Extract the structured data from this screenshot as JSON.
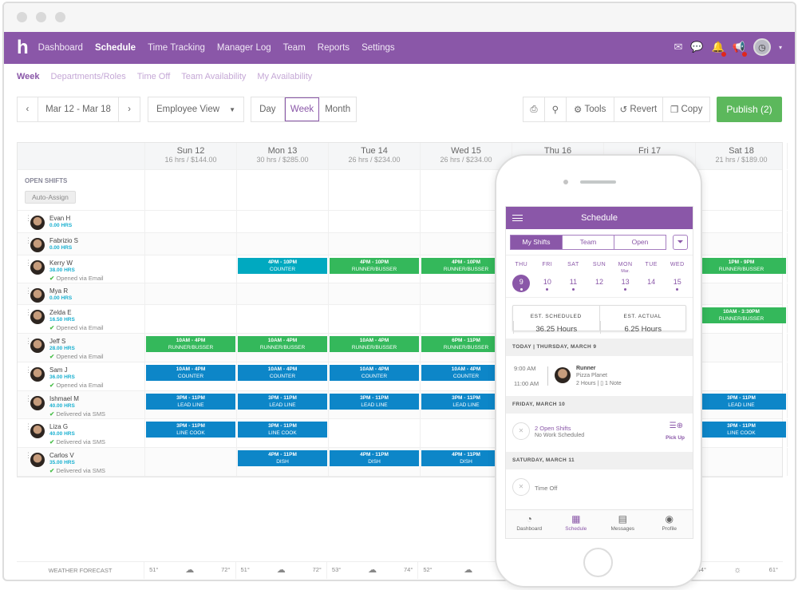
{
  "nav": {
    "logo": "h",
    "items": [
      "Dashboard",
      "Schedule",
      "Time Tracking",
      "Manager Log",
      "Team",
      "Reports",
      "Settings"
    ],
    "active": "Schedule"
  },
  "subnav": {
    "items": [
      "Week",
      "Departments/Roles",
      "Time Off",
      "Team Availability",
      "My Availability"
    ],
    "active": "Week"
  },
  "toolbar": {
    "prev": "‹",
    "date_range": "Mar 12 - Mar 18",
    "next": "›",
    "view_select": "Employee View",
    "views": [
      "Day",
      "Week",
      "Month"
    ],
    "active_view": "Week",
    "print": "⎙",
    "search": "⚲",
    "tools": "Tools",
    "revert": "Revert",
    "copy": "Copy",
    "publish": "Publish (2)"
  },
  "colors": {
    "brand": "#8a57a8",
    "green": "#34b85b",
    "blue": "#0d86c8",
    "teal": "#00a9c0",
    "publish": "#5cb85c"
  },
  "days": [
    {
      "name": "Sun 12",
      "summary": "16 hrs / $144.00"
    },
    {
      "name": "Mon 13",
      "summary": "30 hrs / $285.00"
    },
    {
      "name": "Tue 14",
      "summary": "26 hrs / $234.00"
    },
    {
      "name": "Wed 15",
      "summary": "26 hrs / $234.00"
    },
    {
      "name": "Thu 16",
      "summary": ""
    },
    {
      "name": "Fri 17",
      "summary": ""
    },
    {
      "name": "Sat 18",
      "summary": "21 hrs / $189.00"
    }
  ],
  "open_shifts": {
    "label": "OPEN SHIFTS",
    "auto_assign": "Auto-Assign"
  },
  "employees": [
    {
      "name": "Evan H",
      "hours": "0.00 HRS",
      "status": "",
      "shifts": []
    },
    {
      "name": "Fabrizio S",
      "hours": "0.00 HRS",
      "status": "",
      "shifts": []
    },
    {
      "name": "Kerry W",
      "hours": "38.00 HRS",
      "status": "Opened via Email",
      "shifts": [
        {
          "day": 1,
          "time": "4PM - 10PM",
          "role": "COUNTER",
          "color": "teal"
        },
        {
          "day": 2,
          "time": "4PM - 10PM",
          "role": "RUNNER/BUSSER",
          "color": "green"
        },
        {
          "day": 3,
          "time": "4PM - 10PM",
          "role": "RUNNER/BUSSER",
          "color": "green"
        },
        {
          "day": 6,
          "time": "1PM - 9PM",
          "role": "RUNNER/BUSSER",
          "color": "green"
        }
      ]
    },
    {
      "name": "Mya R",
      "hours": "0.00 HRS",
      "status": "",
      "shifts": []
    },
    {
      "name": "Zelda E",
      "hours": "16.50 HRS",
      "status": "Opened via Email",
      "shifts": [
        {
          "day": 6,
          "time": "10AM - 3:30PM",
          "role": "RUNNER/BUSSER",
          "color": "green"
        }
      ]
    },
    {
      "name": "Jeff S",
      "hours": "28.00 HRS",
      "status": "Opened via Email",
      "shifts": [
        {
          "day": 0,
          "time": "10AM - 4PM",
          "role": "RUNNER/BUSSER",
          "color": "green"
        },
        {
          "day": 1,
          "time": "10AM - 4PM",
          "role": "RUNNER/BUSSER",
          "color": "green"
        },
        {
          "day": 2,
          "time": "10AM - 4PM",
          "role": "RUNNER/BUSSER",
          "color": "green"
        },
        {
          "day": 3,
          "time": "6PM - 11PM",
          "role": "RUNNER/BUSSER",
          "color": "green"
        }
      ]
    },
    {
      "name": "Sam J",
      "hours": "36.00 HRS",
      "status": "Opened via Email",
      "shifts": [
        {
          "day": 0,
          "time": "10AM - 4PM",
          "role": "COUNTER",
          "color": "blue"
        },
        {
          "day": 1,
          "time": "10AM - 4PM",
          "role": "COUNTER",
          "color": "blue"
        },
        {
          "day": 2,
          "time": "10AM - 4PM",
          "role": "COUNTER",
          "color": "blue"
        },
        {
          "day": 3,
          "time": "10AM - 4PM",
          "role": "COUNTER",
          "color": "blue"
        }
      ]
    },
    {
      "name": "Ishmael M",
      "hours": "40.00 HRS",
      "status": "Delivered via SMS",
      "shifts": [
        {
          "day": 0,
          "time": "3PM - 11PM",
          "role": "LEAD LINE",
          "color": "blue"
        },
        {
          "day": 1,
          "time": "3PM - 11PM",
          "role": "LEAD LINE",
          "color": "blue"
        },
        {
          "day": 2,
          "time": "3PM - 11PM",
          "role": "LEAD LINE",
          "color": "blue"
        },
        {
          "day": 3,
          "time": "3PM - 11PM",
          "role": "LEAD LINE",
          "color": "blue"
        },
        {
          "day": 6,
          "time": "3PM - 11PM",
          "role": "LEAD LINE",
          "color": "blue"
        }
      ]
    },
    {
      "name": "Liza G",
      "hours": "40.00 HRS",
      "status": "Delivered via SMS",
      "shifts": [
        {
          "day": 0,
          "time": "3PM - 11PM",
          "role": "LINE COOK",
          "color": "blue"
        },
        {
          "day": 1,
          "time": "3PM - 11PM",
          "role": "LINE COOK",
          "color": "blue"
        },
        {
          "day": 6,
          "time": "3PM - 11PM",
          "role": "LINE COOK",
          "color": "blue"
        }
      ]
    },
    {
      "name": "Carlos V",
      "hours": "35.00 HRS",
      "status": "Delivered via SMS",
      "shifts": [
        {
          "day": 1,
          "time": "4PM - 11PM",
          "role": "DISH",
          "color": "blue"
        },
        {
          "day": 2,
          "time": "4PM - 11PM",
          "role": "DISH",
          "color": "blue"
        },
        {
          "day": 3,
          "time": "4PM - 11PM",
          "role": "DISH",
          "color": "blue"
        }
      ]
    }
  ],
  "weather": {
    "label": "WEATHER FORECAST",
    "days": [
      {
        "low": "51°",
        "high": "72°",
        "icon": "rain-cloud-icon"
      },
      {
        "low": "51°",
        "high": "72°",
        "icon": "rain-cloud-icon"
      },
      {
        "low": "53°",
        "high": "74°",
        "icon": "rain-cloud-icon"
      },
      {
        "low": "52°",
        "high": "",
        "icon": "rain-cloud-icon"
      },
      null,
      null,
      {
        "low": "44°",
        "high": "61°",
        "icon": "sun-icon"
      }
    ]
  },
  "phone": {
    "title": "Schedule",
    "tabs": [
      "My Shifts",
      "Team",
      "Open"
    ],
    "active_tab": "My Shifts",
    "calendar": [
      {
        "dow": "THU",
        "num": "9",
        "month": "",
        "dot": true,
        "selected": true
      },
      {
        "dow": "FRI",
        "num": "10",
        "month": "",
        "dot": true
      },
      {
        "dow": "SAT",
        "num": "11",
        "month": "",
        "dot": true
      },
      {
        "dow": "SUN",
        "num": "12",
        "month": "",
        "dot": false
      },
      {
        "dow": "MON",
        "num": "13",
        "month": "Mar.",
        "dot": true
      },
      {
        "dow": "TUE",
        "num": "14",
        "month": "",
        "dot": false
      },
      {
        "dow": "WED",
        "num": "15",
        "month": "",
        "dot": true
      }
    ],
    "est_scheduled_label": "EST. SCHEDULED",
    "est_scheduled": "36.25 Hours",
    "est_actual_label": "EST. ACTUAL",
    "est_actual": "6.25 Hours",
    "today_header": "TODAY | THURSDAY, MARCH 9",
    "shift": {
      "start": "9:00 AM",
      "end": "11:00 AM",
      "role": "Runner",
      "location": "Pizza Planet",
      "duration": "2 Hours",
      "notes": "1 Note"
    },
    "fri_header": "FRIDAY, MARCH 10",
    "open_shifts": "2 Open Shifts",
    "no_work": "No Work Scheduled",
    "pick_up": "Pick Up",
    "sat_header": "SATURDAY, MARCH 11",
    "time_off": "Time Off",
    "bottom_nav": [
      "Dashboard",
      "Schedule",
      "Messages",
      "Profile"
    ],
    "active_nav": "Schedule"
  }
}
